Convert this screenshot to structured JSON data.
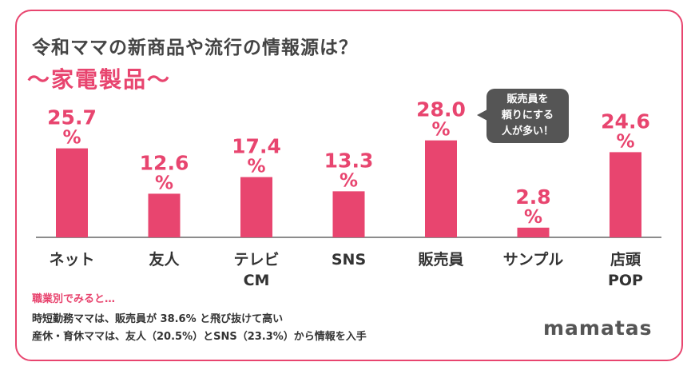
{
  "title": "令和ママの新商品や流行の情報源は？",
  "subtitle": "～家電製品～",
  "chart_data": {
    "type": "bar",
    "categories": [
      "ネット",
      "友人",
      "テレビ\nCM",
      "SNS",
      "販売員",
      "サンプル",
      "店頭\nPOP"
    ],
    "values": [
      25.7,
      12.6,
      17.4,
      13.3,
      28.0,
      2.8,
      24.6
    ],
    "unit": "%",
    "ylim": [
      0,
      30
    ],
    "bar_color": "#e8456f",
    "label_color": "#e8456f",
    "axis_color": "#666666",
    "grid": false
  },
  "callout": "販売員を\n頼りにする\n人が多い！",
  "notes": {
    "title": "職業別でみると…",
    "lines": [
      "時短勤務ママは、販売員が 38.6% と飛び抜けて高い",
      "産休・育休ママは、友人（20.5%）とSNS（23.3%）から情報を入手"
    ]
  },
  "brand": "mamatas"
}
